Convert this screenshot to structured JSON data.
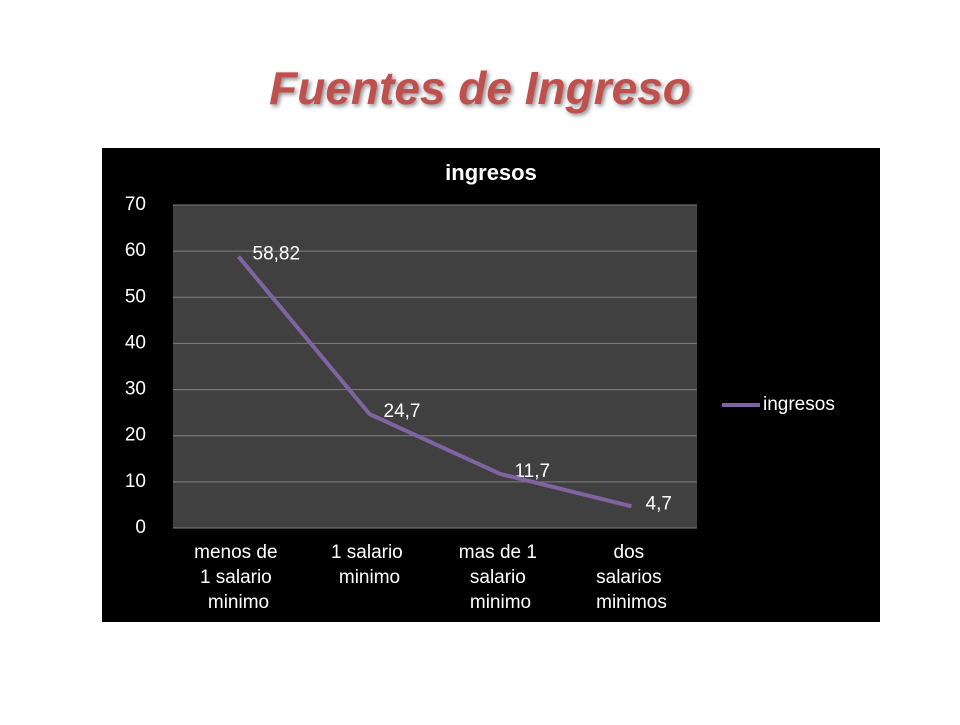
{
  "slide": {
    "title": "Fuentes de Ingreso"
  },
  "chart_data": {
    "type": "line",
    "title": "ingresos",
    "categories": [
      "menos de 1 salario minimo",
      "1 salario minimo",
      "mas de 1 salario minimo",
      "dos salarios minimos"
    ],
    "series": [
      {
        "name": "ingresos",
        "color": "#8064a2",
        "values": [
          58.82,
          24.7,
          11.7,
          4.7
        ],
        "value_labels": [
          "58,82",
          "24,7",
          "11,7",
          "4,7"
        ]
      }
    ],
    "ylim": [
      0,
      70
    ],
    "yticks": [
      0,
      10,
      20,
      30,
      40,
      50,
      60,
      70
    ],
    "grid": true,
    "legend": "right"
  }
}
